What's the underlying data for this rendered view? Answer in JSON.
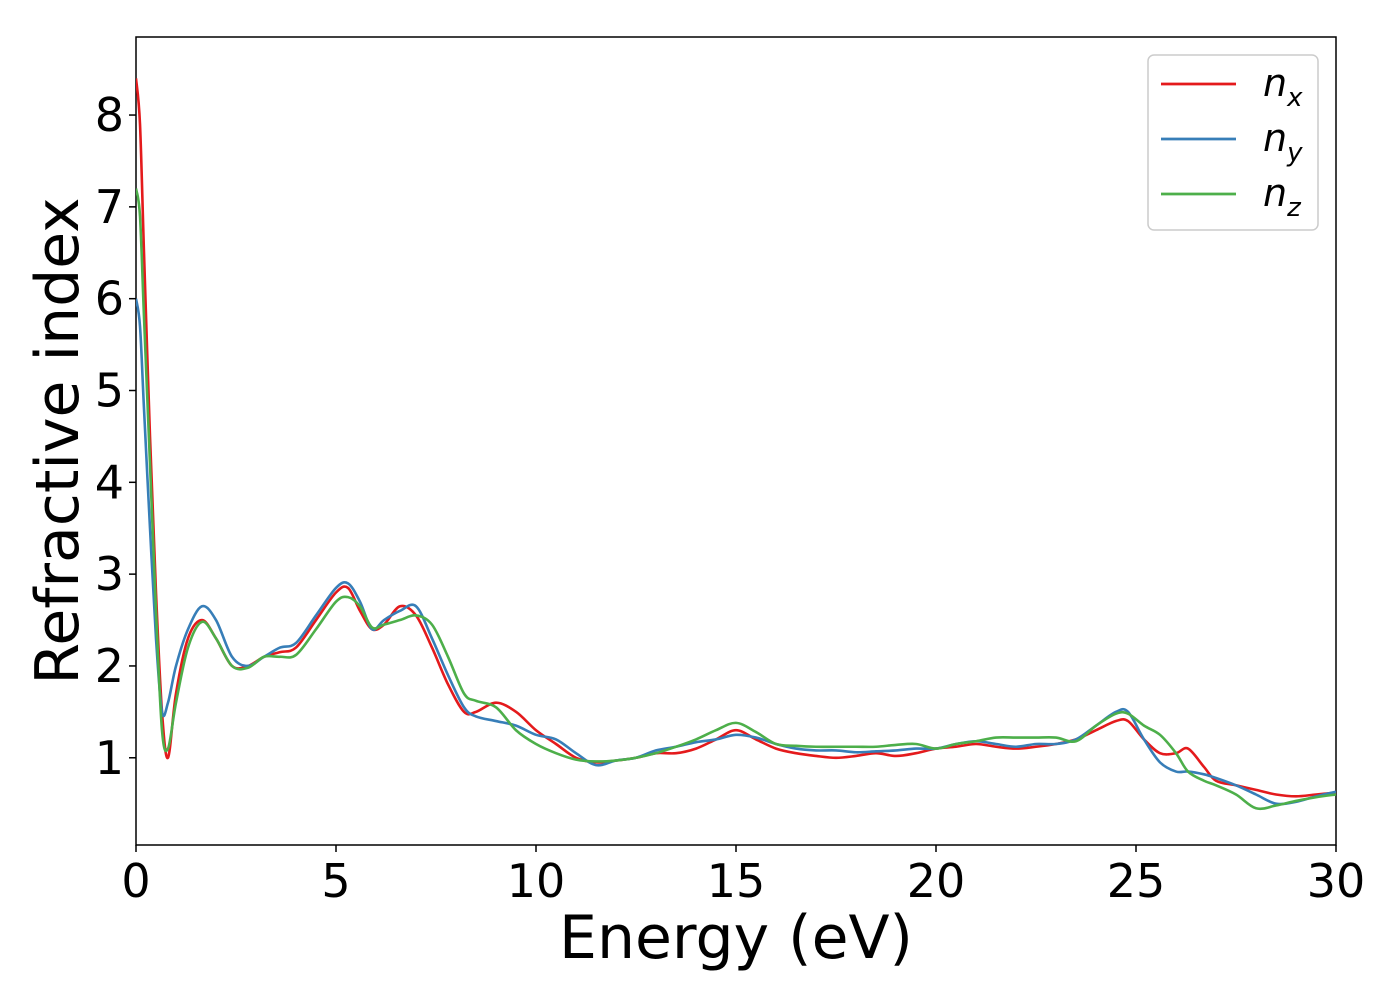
{
  "chart_data": {
    "type": "line",
    "xlabel": "Energy (eV)",
    "ylabel": "Refractive index",
    "xlim": [
      0,
      30
    ],
    "ylim": [
      0.05,
      8.85
    ],
    "xticks": [
      0,
      5,
      10,
      15,
      20,
      25,
      30
    ],
    "yticks": [
      1,
      2,
      3,
      4,
      5,
      6,
      7,
      8
    ],
    "xtick_labels": [
      "0",
      "5",
      "10",
      "15",
      "20",
      "25",
      "30"
    ],
    "ytick_labels": [
      "1",
      "2",
      "3",
      "4",
      "5",
      "6",
      "7",
      "8"
    ],
    "grid": false,
    "legend_position": "top-right",
    "series": [
      {
        "name": "n_x",
        "label_main": "n",
        "label_sub": "x",
        "color": "#e41a1c",
        "x": [
          0,
          0.1,
          0.2,
          0.35,
          0.5,
          0.65,
          0.8,
          1.0,
          1.3,
          1.65,
          2.0,
          2.4,
          2.8,
          3.2,
          3.6,
          4.0,
          4.5,
          5.0,
          5.3,
          5.6,
          5.9,
          6.2,
          6.6,
          7.0,
          7.4,
          7.8,
          8.2,
          8.5,
          9.0,
          9.5,
          10.0,
          10.5,
          11.0,
          11.5,
          12.0,
          12.5,
          13.0,
          13.5,
          14.0,
          14.5,
          15.0,
          15.5,
          16.0,
          16.5,
          17.0,
          17.5,
          18.0,
          18.5,
          19.0,
          19.5,
          20.0,
          20.5,
          21.0,
          21.5,
          22.0,
          22.5,
          23.0,
          23.5,
          24.0,
          24.5,
          24.8,
          25.2,
          25.6,
          26.0,
          26.3,
          26.7,
          27.0,
          27.5,
          28.0,
          28.5,
          29.0,
          29.5,
          30.0
        ],
        "y": [
          8.4,
          7.9,
          6.5,
          4.5,
          2.8,
          1.5,
          1.0,
          1.7,
          2.3,
          2.5,
          2.3,
          2.0,
          2.0,
          2.1,
          2.15,
          2.2,
          2.5,
          2.8,
          2.85,
          2.6,
          2.4,
          2.45,
          2.65,
          2.55,
          2.2,
          1.8,
          1.5,
          1.5,
          1.6,
          1.5,
          1.3,
          1.15,
          1.0,
          0.95,
          0.97,
          1.0,
          1.05,
          1.05,
          1.1,
          1.2,
          1.3,
          1.2,
          1.1,
          1.05,
          1.02,
          1.0,
          1.02,
          1.05,
          1.02,
          1.05,
          1.1,
          1.12,
          1.15,
          1.12,
          1.1,
          1.12,
          1.15,
          1.2,
          1.3,
          1.4,
          1.4,
          1.2,
          1.05,
          1.05,
          1.1,
          0.9,
          0.75,
          0.7,
          0.65,
          0.6,
          0.58,
          0.6,
          0.62
        ]
      },
      {
        "name": "n_y",
        "label_main": "n",
        "label_sub": "y",
        "color": "#377eb8",
        "x": [
          0,
          0.1,
          0.2,
          0.35,
          0.5,
          0.65,
          0.8,
          1.0,
          1.3,
          1.65,
          2.0,
          2.4,
          2.8,
          3.2,
          3.6,
          4.0,
          4.5,
          5.0,
          5.3,
          5.6,
          5.9,
          6.2,
          6.6,
          7.0,
          7.4,
          7.8,
          8.2,
          8.5,
          9.0,
          9.5,
          10.0,
          10.5,
          11.0,
          11.5,
          12.0,
          12.5,
          13.0,
          13.5,
          14.0,
          14.5,
          15.0,
          15.5,
          16.0,
          16.5,
          17.0,
          17.5,
          18.0,
          18.5,
          19.0,
          19.5,
          20.0,
          20.5,
          21.0,
          21.5,
          22.0,
          22.5,
          23.0,
          23.5,
          24.0,
          24.5,
          24.8,
          25.2,
          25.6,
          26.0,
          26.3,
          26.7,
          27.0,
          27.5,
          28.0,
          28.5,
          29.0,
          29.5,
          30.0
        ],
        "y": [
          6.0,
          5.7,
          4.8,
          3.5,
          2.3,
          1.5,
          1.6,
          2.0,
          2.4,
          2.65,
          2.5,
          2.1,
          2.0,
          2.1,
          2.2,
          2.25,
          2.55,
          2.85,
          2.9,
          2.7,
          2.4,
          2.5,
          2.6,
          2.65,
          2.3,
          1.9,
          1.55,
          1.45,
          1.4,
          1.35,
          1.25,
          1.2,
          1.05,
          0.92,
          0.97,
          1.0,
          1.08,
          1.12,
          1.17,
          1.2,
          1.25,
          1.22,
          1.15,
          1.1,
          1.08,
          1.08,
          1.06,
          1.07,
          1.08,
          1.1,
          1.1,
          1.15,
          1.18,
          1.15,
          1.12,
          1.15,
          1.15,
          1.2,
          1.35,
          1.5,
          1.5,
          1.2,
          0.95,
          0.85,
          0.85,
          0.82,
          0.78,
          0.7,
          0.6,
          0.5,
          0.52,
          0.58,
          0.63
        ]
      },
      {
        "name": "n_z",
        "label_main": "n",
        "label_sub": "z",
        "color": "#4daf4a",
        "x": [
          0,
          0.1,
          0.2,
          0.35,
          0.5,
          0.65,
          0.8,
          1.0,
          1.3,
          1.65,
          2.0,
          2.4,
          2.8,
          3.2,
          3.6,
          4.0,
          4.5,
          5.0,
          5.3,
          5.6,
          5.9,
          6.2,
          6.6,
          7.0,
          7.4,
          7.8,
          8.2,
          8.5,
          9.0,
          9.5,
          10.0,
          10.5,
          11.0,
          11.5,
          12.0,
          12.5,
          13.0,
          13.5,
          14.0,
          14.5,
          15.0,
          15.5,
          16.0,
          16.5,
          17.0,
          17.5,
          18.0,
          18.5,
          19.0,
          19.5,
          20.0,
          20.5,
          21.0,
          21.5,
          22.0,
          22.5,
          23.0,
          23.5,
          24.0,
          24.5,
          24.8,
          25.2,
          25.6,
          26.0,
          26.3,
          26.7,
          27.0,
          27.5,
          28.0,
          28.5,
          29.0,
          29.5,
          30.0
        ],
        "y": [
          7.2,
          6.9,
          5.8,
          4.2,
          2.6,
          1.3,
          1.1,
          1.6,
          2.2,
          2.48,
          2.3,
          2.0,
          1.98,
          2.1,
          2.1,
          2.12,
          2.4,
          2.7,
          2.75,
          2.65,
          2.42,
          2.45,
          2.5,
          2.55,
          2.45,
          2.1,
          1.7,
          1.62,
          1.55,
          1.3,
          1.15,
          1.05,
          0.98,
          0.96,
          0.97,
          1.0,
          1.05,
          1.12,
          1.2,
          1.3,
          1.38,
          1.28,
          1.15,
          1.13,
          1.12,
          1.12,
          1.12,
          1.12,
          1.14,
          1.15,
          1.1,
          1.15,
          1.18,
          1.22,
          1.22,
          1.22,
          1.22,
          1.18,
          1.35,
          1.48,
          1.48,
          1.35,
          1.25,
          1.05,
          0.85,
          0.75,
          0.7,
          0.6,
          0.45,
          0.48,
          0.53,
          0.57,
          0.6
        ]
      }
    ]
  }
}
